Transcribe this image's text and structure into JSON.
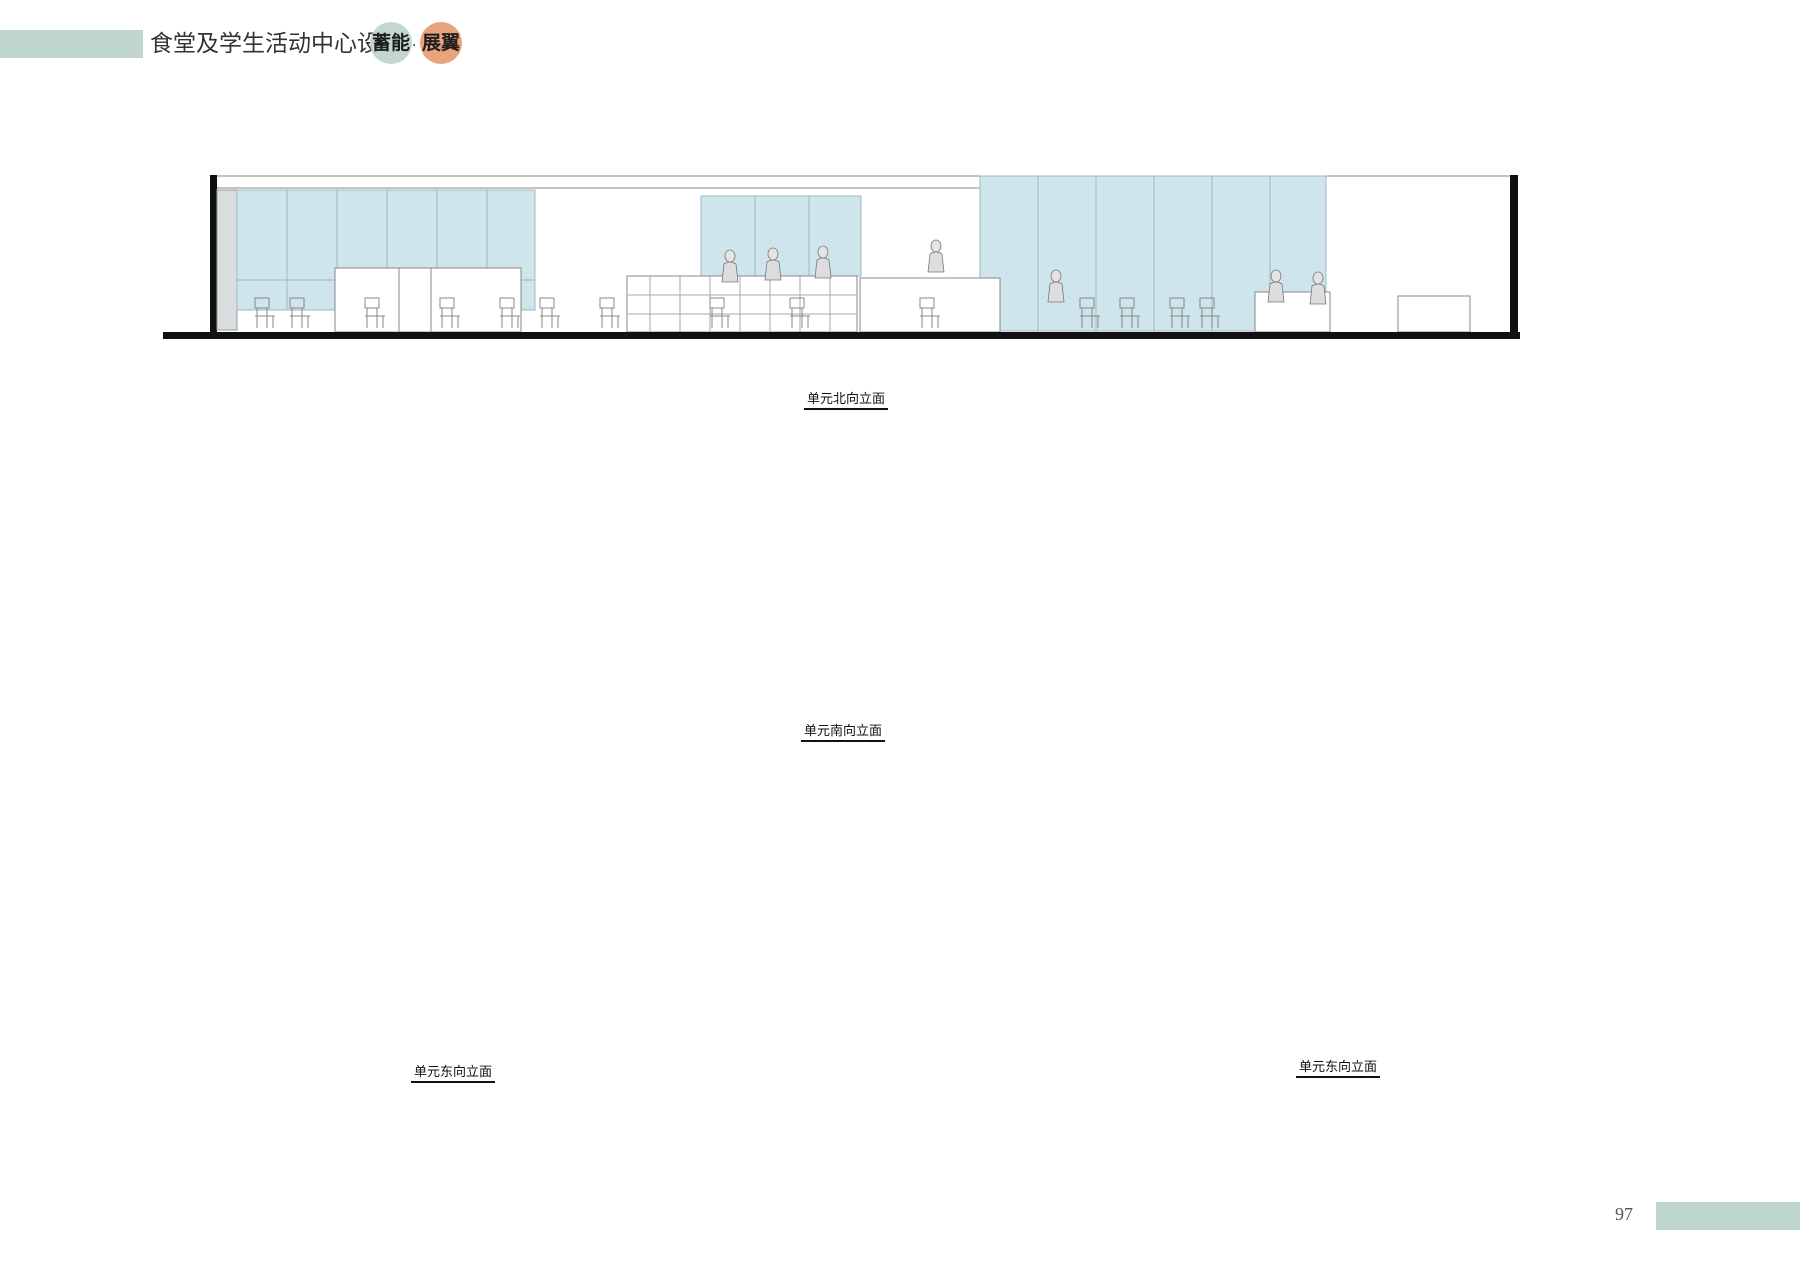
{
  "header": {
    "title": "食堂及学生活动中心设计",
    "badge_left": "蓄能",
    "separator": "·",
    "badge_right": "展翼",
    "bar_color": "#c0d6cf",
    "badge_left_color": "#c3d6cf",
    "badge_right_color": "#e9a37d"
  },
  "elevations": [
    {
      "caption": "单元北向立面"
    },
    {
      "caption": "单元南向立面"
    },
    {
      "caption": "单元东向立面"
    },
    {
      "caption": "单元东向立面"
    }
  ],
  "colors": {
    "glass": "#cfe5ec",
    "glass_stroke": "#9fb8c2",
    "line": "#8a8a8a",
    "ground": "#111111"
  },
  "footer": {
    "page_number": "97"
  }
}
